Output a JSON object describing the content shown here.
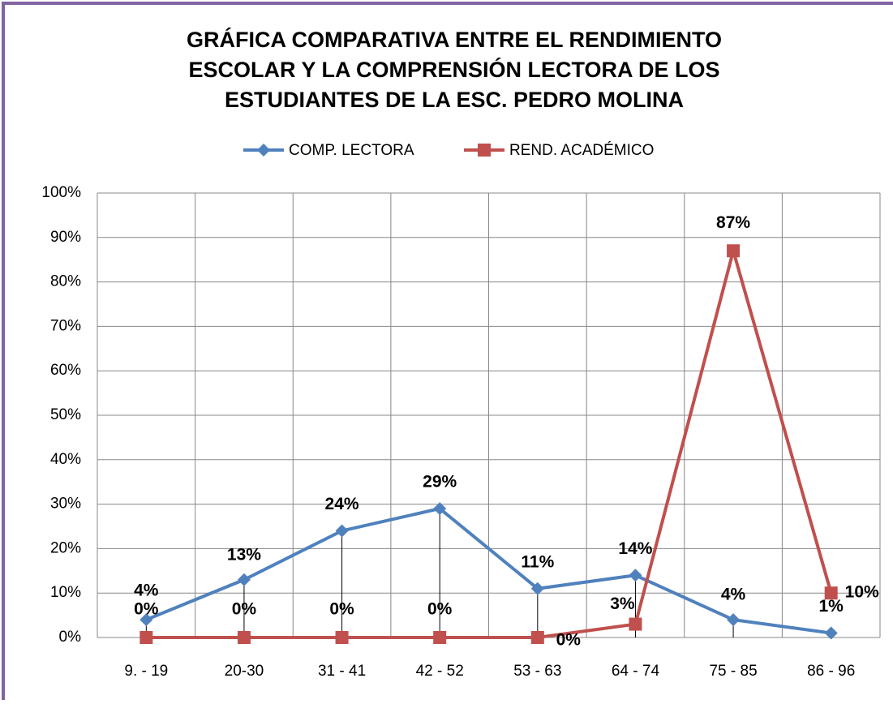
{
  "chart_data": {
    "type": "line",
    "title": [
      "GRÁFICA COMPARATIVA ENTRE EL RENDIMIENTO",
      "ESCOLAR Y LA COMPRENSIÓN LECTORA DE LOS",
      "ESTUDIANTES DE LA ESC. PEDRO MOLINA"
    ],
    "categories": [
      "9. - 19",
      "20-30",
      "31 - 41",
      "42 - 52",
      "53 - 63",
      "64 - 74",
      "75 - 85",
      "86 - 96"
    ],
    "series": [
      {
        "name": "COMP. LECTORA",
        "color": "#4f81bd",
        "marker": "diamond",
        "values": [
          4,
          13,
          24,
          29,
          11,
          14,
          4,
          1
        ],
        "value_labels": [
          "4%",
          "13%",
          "24%",
          "29%",
          "11%",
          "14%",
          "4%",
          "1%"
        ]
      },
      {
        "name": "REND. ACADÉMICO",
        "color": "#c0504d",
        "marker": "square",
        "values": [
          0,
          0,
          0,
          0,
          0,
          3,
          87,
          10
        ],
        "value_labels": [
          "0%",
          "0%",
          "0%",
          "0%",
          "0%",
          "3%",
          "87%",
          "10%"
        ]
      }
    ],
    "ylim": [
      0,
      100
    ],
    "yticks": [
      {
        "value": 0,
        "label": "0%"
      },
      {
        "value": 10,
        "label": "10%"
      },
      {
        "value": 20,
        "label": "20%"
      },
      {
        "value": 30,
        "label": "30%"
      },
      {
        "value": 40,
        "label": "40%"
      },
      {
        "value": 50,
        "label": "50%"
      },
      {
        "value": 60,
        "label": "60%"
      },
      {
        "value": 70,
        "label": "70%"
      },
      {
        "value": 80,
        "label": "80%"
      },
      {
        "value": 90,
        "label": "90%"
      },
      {
        "value": 100,
        "label": "100%"
      }
    ],
    "grid": true,
    "legend": "top"
  }
}
